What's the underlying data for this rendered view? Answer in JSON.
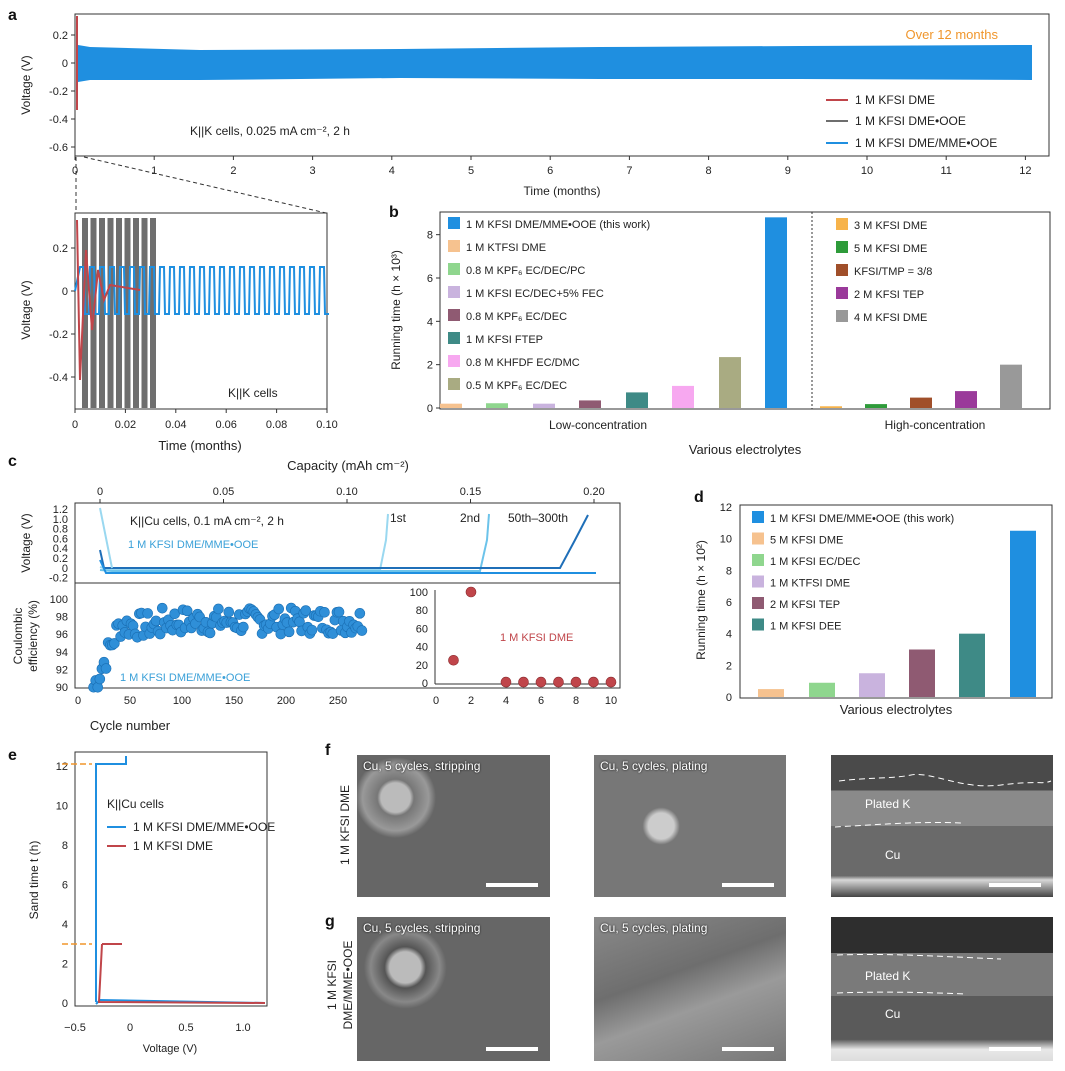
{
  "panels": {
    "a": "a",
    "b": "b",
    "c": "c",
    "d": "d",
    "e": "e",
    "f": "f",
    "g": "g"
  },
  "colors": {
    "red": "#c0454a",
    "gray": "#6e6e6e",
    "blue": "#1f8fe0",
    "orange": "#f0962c"
  },
  "panel_a": {
    "ylabel": "Voltage (V)",
    "xlabel": "Time (months)",
    "annotation": "Over 12 months",
    "condition": "K||K cells, 0.025 mA cm⁻², 2 h",
    "legend": [
      "1 M KFSI DME",
      "1 M KFSI DME•OOE",
      "1 M KFSI DME/MME•OOE"
    ],
    "xticks": [
      "0",
      "1",
      "2",
      "3",
      "4",
      "5",
      "6",
      "7",
      "8",
      "9",
      "10",
      "11",
      "12"
    ],
    "yticks": [
      "0.2",
      "0.1",
      "0",
      "-0.1",
      "-0.2",
      "-0.3",
      "-0.4",
      "-0.5",
      "-0.6"
    ]
  },
  "panel_a_inset": {
    "ylabel": "Voltage (V)",
    "xlabel": "Time (months)",
    "condition": "K||K cells",
    "xticks": [
      "0",
      "0.02",
      "0.04",
      "0.06",
      "0.08",
      "0.10"
    ],
    "yticks": [
      "0.2",
      "0",
      "-0.2",
      "-0.4"
    ]
  },
  "panel_c": {
    "top_xlabel": "Capacity (mAh cm⁻²)",
    "top_xticks": [
      "0",
      "0.05",
      "0.10",
      "0.15",
      "0.20"
    ],
    "v_ylabel": "Voltage (V)",
    "v_yticks": [
      "1.2",
      "1.0",
      "0.8",
      "0.6",
      "0.4",
      "0.2",
      "0",
      "-0.2"
    ],
    "condition": "K||Cu cells, 0.1 mA cm⁻², 2 h",
    "series_label": "1 M KFSI DME/MME•OOE",
    "curve_labels": [
      "1st",
      "2nd",
      "50th–300th"
    ],
    "ce_ylabel_1": "Coulombic",
    "ce_ylabel_2": "efficiency (%)",
    "ce_yticks": [
      "100",
      "98",
      "96",
      "94",
      "92",
      "90"
    ],
    "ce_xticks": [
      "0",
      "50",
      "100",
      "150",
      "200",
      "250"
    ],
    "xlabel": "Cycle number",
    "ce_series_label": "1 M KFSI DME/MME•OOE",
    "inset_label": "1 M KFSI DME",
    "inset_yticks": [
      "100",
      "80",
      "60",
      "40",
      "20",
      "0"
    ],
    "inset_xticks": [
      "0",
      "2",
      "4",
      "6",
      "8",
      "10"
    ]
  },
  "panel_e": {
    "ylabel": "Sand time t (h)",
    "xlabel": "Voltage (V)",
    "title": "K||Cu cells",
    "legend": [
      "1 M KFSI DME/MME•OOE",
      "1 M KFSI DME"
    ],
    "xticks": [
      "−0.5",
      "0",
      "0.5",
      "1.0"
    ],
    "yticks": [
      "12",
      "10",
      "8",
      "6",
      "4",
      "2",
      "0"
    ]
  },
  "panel_fg": {
    "row_f": "1 M KFSI DME",
    "row_g_1": "1 M KFSI",
    "row_g_2": "DME/MME•OOE",
    "captions": [
      "Cu, 5 cycles, stripping",
      "Cu, 5 cycles, plating"
    ],
    "layer_plated": "Plated K",
    "layer_cu": "Cu"
  },
  "chart_data": [
    {
      "type": "bar",
      "title": "",
      "xlabel": "Various electrolytes",
      "ylabel": "Running time (h × 10³)",
      "ylim": [
        0,
        9
      ],
      "yticks": [
        "0",
        "2",
        "4",
        "6",
        "8"
      ],
      "groups": [
        "Low-concentration",
        "High-concentration"
      ],
      "low": {
        "categories": [
          "0.8 M KHFDF EC/DMC? "
        ],
        "series": [
          {
            "name": "1 M KTFSI DME",
            "value": 0.2,
            "color": "#f6c28f"
          },
          {
            "name": "0.8 M KPF6 EC/DEC/PC",
            "value": 0.22,
            "color": "#8fd68e"
          },
          {
            "name": "1 M KFSI EC/DEC+5% FEC",
            "value": 0.2,
            "color": "#c9b3de"
          },
          {
            "name": "0.8 M KPF6 EC/DEC",
            "value": 0.35,
            "color": "#8f5a72"
          },
          {
            "name": "1 M KFSI FTEP",
            "value": 0.72,
            "color": "#3e8a86"
          },
          {
            "name": "0.8 M KHFDF EC/DMC",
            "value": 1.02,
            "color": "#f7a8f0"
          },
          {
            "name": "0.5 M KPF6 EC/DEC",
            "value": 2.35,
            "color": "#a9ab82"
          },
          {
            "name": "1 M KFSI DME/MME•OOE (this work)",
            "value": 8.8,
            "color": "#1f8fe0"
          }
        ]
      },
      "high": {
        "series": [
          {
            "name": "3 M KFSI DME",
            "value": 0.08,
            "color": "#f7b34a"
          },
          {
            "name": "5 M KFSI DME",
            "value": 0.18,
            "color": "#2e9b3a"
          },
          {
            "name": "KFSI/TMP = 3/8",
            "value": 0.48,
            "color": "#a04f2a"
          },
          {
            "name": "2 M KFSI TEP",
            "value": 0.78,
            "color": "#9a3a9a"
          },
          {
            "name": "4 M KFSI DME",
            "value": 2.0,
            "color": "#999999"
          }
        ]
      },
      "legend_left": [
        "1 M KFSI DME/MME•OOE (this work)",
        "1 M KTFSI DME",
        "0.8 M KPF₆ EC/DEC/PC",
        "1 M KFSI EC/DEC+5% FEC",
        "0.8 M KPF₆ EC/DEC",
        "1 M KFSI FTEP",
        "0.8 M KHFDF EC/DMC",
        "0.5 M KPF₆ EC/DEC"
      ],
      "legend_right": [
        "3 M KFSI DME",
        "5 M KFSI DME",
        "KFSI/TMP = 3/8",
        "2 M KFSI TEP",
        "4 M KFSI DME"
      ]
    },
    {
      "type": "bar",
      "title": "",
      "xlabel": "Various electrolytes",
      "ylabel": "Running time (h × 10²)",
      "ylim": [
        0,
        12
      ],
      "yticks": [
        "0",
        "2",
        "4",
        "6",
        "8",
        "10",
        "12"
      ],
      "series": [
        {
          "name": "5 M KFSI DME",
          "value": 0.5,
          "color": "#f6c28f"
        },
        {
          "name": "1 M KFSI EC/DEC",
          "value": 0.9,
          "color": "#8fd68e"
        },
        {
          "name": "1 M KTFSI DME",
          "value": 1.5,
          "color": "#c9b3de"
        },
        {
          "name": "2 M KFSI TEP",
          "value": 3.0,
          "color": "#8f5a72"
        },
        {
          "name": "1 M KFSI DEE",
          "value": 4.0,
          "color": "#3e8a86"
        },
        {
          "name": "1 M KFSI DME/MME•OOE (this work)",
          "value": 10.5,
          "color": "#1f8fe0"
        }
      ],
      "legend": [
        "1 M KFSI DME/MME•OOE (this work)",
        "5 M KFSI DME",
        "1 M KFSI EC/DEC",
        "1 M KTFSI DME",
        "2 M KFSI TEP",
        "1 M KFSI DEE"
      ]
    },
    {
      "type": "scatter",
      "name_hidden": "",
      "xlim": [
        0,
        10
      ],
      "ylim": [
        0,
        100
      ],
      "x": [
        1,
        2,
        4,
        5,
        6,
        7,
        8,
        9,
        10
      ],
      "y": [
        25,
        100,
        1,
        1,
        1,
        1,
        1,
        1,
        1
      ]
    }
  ]
}
